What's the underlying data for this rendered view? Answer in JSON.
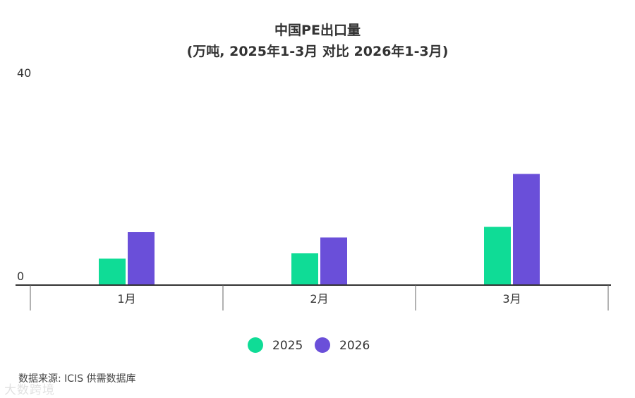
{
  "chart_data": {
    "type": "bar",
    "title": "中国PE出口量",
    "subtitle": "(万吨, 2025年1-3月 对比 2026年1-3月)",
    "categories": [
      "1月",
      "2月",
      "3月"
    ],
    "series": [
      {
        "name": "2025",
        "values": [
          5,
          6,
          11
        ],
        "color": "#0fdc96"
      },
      {
        "name": "2026",
        "values": [
          10,
          9,
          21
        ],
        "color": "#6a4fd9"
      }
    ],
    "ylim": [
      0,
      40
    ],
    "ytick_labels": [
      "0",
      "40"
    ],
    "legend_position": "bottom",
    "grid": false
  },
  "source_text": "数据来源: ICIS 供需数据库",
  "watermark_text": "大数跨境"
}
